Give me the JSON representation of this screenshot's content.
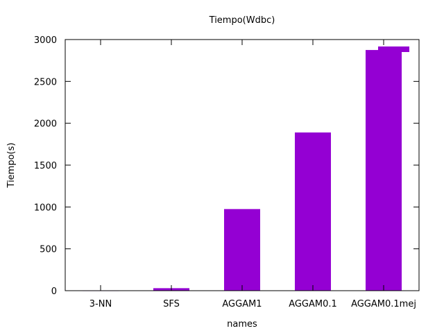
{
  "chart_data": {
    "type": "bar",
    "title": "Tiempo(Wdbc)",
    "xlabel": "names",
    "ylabel": "Tiempo(s)",
    "categories": [
      "3-NN",
      "SFS",
      "AGGAM1",
      "AGGAM0.1",
      "AGGAM0.1mej"
    ],
    "values": [
      0.5,
      30,
      975,
      1890,
      2875
    ],
    "ylim": [
      0,
      3000
    ],
    "yticks": [
      0,
      500,
      1000,
      1500,
      2000,
      2500,
      3000
    ],
    "legend": {
      "visible": true,
      "position": "top-right",
      "label": "",
      "color": "#9400d3"
    },
    "bar_color": "#9400d3",
    "grid": false
  }
}
